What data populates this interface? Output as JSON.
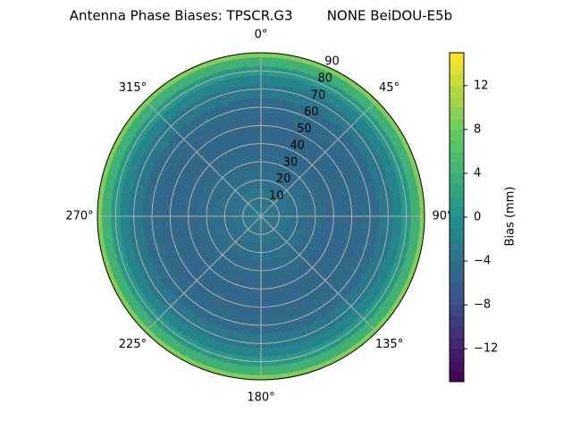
{
  "chart_data": {
    "type": "polar_contour",
    "title": "Antenna Phase Biases: TPSCR.G3        NONE BeiDOU-E5b",
    "radii": [
      0,
      10,
      20,
      30,
      40,
      50,
      60,
      70,
      75,
      80,
      85,
      90
    ],
    "values": [
      -3,
      -3.5,
      -4,
      -4.5,
      -5,
      -5,
      -4.5,
      -3,
      -1.5,
      1,
      4,
      9
    ],
    "rlim": [
      0,
      90
    ],
    "rticks": [
      10,
      20,
      30,
      40,
      50,
      60,
      70,
      80,
      90
    ],
    "thetaticks": [
      {
        "value": 0,
        "label": "0°"
      },
      {
        "value": 45,
        "label": "45°"
      },
      {
        "value": 90,
        "label": "90°"
      },
      {
        "value": 135,
        "label": "135°"
      },
      {
        "value": 180,
        "label": "180°"
      },
      {
        "value": 225,
        "label": "225°"
      },
      {
        "value": 270,
        "label": "270°"
      },
      {
        "value": 315,
        "label": "315°"
      }
    ],
    "colorbar_label": "Bias (mm)",
    "clim": [
      -15,
      15
    ],
    "cticks": [
      {
        "value": -12,
        "label": "−12"
      },
      {
        "value": -8,
        "label": "−8"
      },
      {
        "value": -4,
        "label": "−4"
      },
      0,
      4,
      8,
      12
    ],
    "colormap": "viridis",
    "grid": true
  }
}
